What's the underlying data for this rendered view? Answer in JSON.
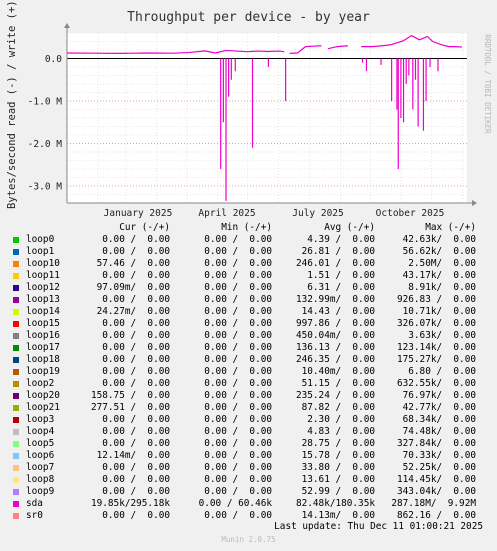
{
  "chart_data": {
    "type": "line",
    "title": "Throughput per device - by year",
    "ylabel": "Bytes/second read (-) / write (+)",
    "y_ticks": [
      "0.0",
      "-1.0 M",
      "-2.0 M",
      "-3.0 M"
    ],
    "y_tick_values": [
      0,
      -1000000,
      -2000000,
      -3000000
    ],
    "ylim": [
      -3400000,
      600000
    ],
    "x_ticks": [
      "January 2025",
      "April 2025",
      "July 2025",
      "October 2025"
    ],
    "grid": true,
    "columns": [
      "Cur (-/+)",
      "Min (-/+)",
      "Avg (-/+)",
      "Max (-/+)"
    ],
    "series": [
      {
        "name": "loop0",
        "color": "#00cc00",
        "cur": "0.00 /  0.00",
        "min": "0.00 /  0.00",
        "avg": "4.39 /  0.00",
        "max": "42.63k/  0.00"
      },
      {
        "name": "loop1",
        "color": "#0066b3",
        "cur": "0.00 /  0.00",
        "min": "0.00 /  0.00",
        "avg": "26.81 /  0.00",
        "max": "56.62k/  0.00"
      },
      {
        "name": "loop10",
        "color": "#ff8000",
        "cur": "57.46 /  0.00",
        "min": "0.00 /  0.00",
        "avg": "246.01 /  0.00",
        "max": "2.50M/  0.00"
      },
      {
        "name": "loop11",
        "color": "#ffcc00",
        "cur": "0.00 /  0.00",
        "min": "0.00 /  0.00",
        "avg": "1.51 /  0.00",
        "max": "43.17k/  0.00"
      },
      {
        "name": "loop12",
        "color": "#330099",
        "cur": "97.09m/  0.00",
        "min": "0.00 /  0.00",
        "avg": "6.31 /  0.00",
        "max": "8.91k/  0.00"
      },
      {
        "name": "loop13",
        "color": "#990099",
        "cur": "0.00 /  0.00",
        "min": "0.00 /  0.00",
        "avg": "132.99m/  0.00",
        "max": "926.83 /  0.00"
      },
      {
        "name": "loop14",
        "color": "#ccff00",
        "cur": "24.27m/  0.00",
        "min": "0.00 /  0.00",
        "avg": "14.43 /  0.00",
        "max": "10.71k/  0.00"
      },
      {
        "name": "loop15",
        "color": "#ff0000",
        "cur": "0.00 /  0.00",
        "min": "0.00 /  0.00",
        "avg": "997.86 /  0.00",
        "max": "326.07k/  0.00"
      },
      {
        "name": "loop16",
        "color": "#808080",
        "cur": "0.00 /  0.00",
        "min": "0.00 /  0.00",
        "avg": "450.04m/  0.00",
        "max": "3.63k/  0.00"
      },
      {
        "name": "loop17",
        "color": "#008f00",
        "cur": "0.00 /  0.00",
        "min": "0.00 /  0.00",
        "avg": "136.13 /  0.00",
        "max": "123.14k/  0.00"
      },
      {
        "name": "loop18",
        "color": "#00487d",
        "cur": "0.00 /  0.00",
        "min": "0.00 /  0.00",
        "avg": "246.35 /  0.00",
        "max": "175.27k/  0.00"
      },
      {
        "name": "loop19",
        "color": "#b35a00",
        "cur": "0.00 /  0.00",
        "min": "0.00 /  0.00",
        "avg": "10.40m/  0.00",
        "max": "6.80 /  0.00"
      },
      {
        "name": "loop2",
        "color": "#b38f00",
        "cur": "0.00 /  0.00",
        "min": "0.00 /  0.00",
        "avg": "51.15 /  0.00",
        "max": "632.55k/  0.00"
      },
      {
        "name": "loop20",
        "color": "#6b006b",
        "cur": "158.75 /  0.00",
        "min": "0.00 /  0.00",
        "avg": "235.24 /  0.00",
        "max": "76.97k/  0.00"
      },
      {
        "name": "loop21",
        "color": "#8fb300",
        "cur": "277.51 /  0.00",
        "min": "0.00 /  0.00",
        "avg": "87.82 /  0.00",
        "max": "42.77k/  0.00"
      },
      {
        "name": "loop3",
        "color": "#b30000",
        "cur": "0.00 /  0.00",
        "min": "0.00 /  0.00",
        "avg": "2.30 /  0.00",
        "max": "68.34k/  0.00"
      },
      {
        "name": "loop4",
        "color": "#bebebe",
        "cur": "0.00 /  0.00",
        "min": "0.00 /  0.00",
        "avg": "4.83 /  0.00",
        "max": "74.48k/  0.00"
      },
      {
        "name": "loop5",
        "color": "#80ff80",
        "cur": "0.00 /  0.00",
        "min": "0.00 /  0.00",
        "avg": "28.75 /  0.00",
        "max": "327.84k/  0.00"
      },
      {
        "name": "loop6",
        "color": "#80c9ff",
        "cur": "12.14m/  0.00",
        "min": "0.00 /  0.00",
        "avg": "15.78 /  0.00",
        "max": "70.33k/  0.00"
      },
      {
        "name": "loop7",
        "color": "#ffc080",
        "cur": "0.00 /  0.00",
        "min": "0.00 /  0.00",
        "avg": "33.80 /  0.00",
        "max": "52.25k/  0.00"
      },
      {
        "name": "loop8",
        "color": "#ffe680",
        "cur": "0.00 /  0.00",
        "min": "0.00 /  0.00",
        "avg": "13.61 /  0.00",
        "max": "114.45k/  0.00"
      },
      {
        "name": "loop9",
        "color": "#aa80ff",
        "cur": "0.00 /  0.00",
        "min": "0.00 /  0.00",
        "avg": "52.99 /  0.00",
        "max": "343.04k/  0.00"
      },
      {
        "name": "sda",
        "color": "#ee00cc",
        "cur": "19.85k/295.18k",
        "min": "0.00 / 60.46k",
        "avg": "82.48k/180.35k",
        "max": "287.18M/  9.92M"
      },
      {
        "name": "sr0",
        "color": "#ff8080",
        "cur": "0.00 /  0.00",
        "min": "0.00 /  0.00",
        "avg": "14.13m/  0.00",
        "max": "862.16 /  0.00"
      }
    ],
    "sda_write_segments": [
      [
        [
          0.0,
          130000
        ],
        [
          0.1,
          125000
        ],
        [
          0.2,
          120000
        ],
        [
          0.3,
          130000
        ],
        [
          0.4,
          125000
        ],
        [
          0.46,
          140000
        ],
        [
          0.52,
          180000
        ],
        [
          0.56,
          130000
        ],
        [
          0.6,
          190000
        ],
        [
          0.64,
          175000
        ],
        [
          0.68,
          160000
        ],
        [
          0.72,
          175000
        ],
        [
          0.76,
          165000
        ],
        [
          0.8,
          175000
        ],
        [
          0.82,
          160000
        ]
      ],
      [
        [
          0.84,
          120000
        ],
        [
          0.87,
          130000
        ],
        [
          0.9,
          280000
        ],
        [
          0.93,
          290000
        ],
        [
          0.96,
          300000
        ]
      ],
      [
        [
          0.985,
          230000
        ],
        [
          1.02,
          280000
        ],
        [
          1.06,
          300000
        ]
      ],
      [
        [
          1.11,
          280000
        ],
        [
          1.15,
          280000
        ],
        [
          1.19,
          300000
        ],
        [
          1.22,
          320000
        ],
        [
          1.27,
          420000
        ],
        [
          1.3,
          540000
        ],
        [
          1.33,
          440000
        ],
        [
          1.36,
          520000
        ],
        [
          1.38,
          400000
        ],
        [
          1.41,
          330000
        ],
        [
          1.44,
          280000
        ],
        [
          1.46,
          280000
        ],
        [
          1.49,
          270000
        ]
      ]
    ],
    "sda_read_dips": [
      [
        0.58,
        -2600000
      ],
      [
        0.59,
        -1500000
      ],
      [
        0.6,
        -3350000
      ],
      [
        0.61,
        -900000
      ],
      [
        0.62,
        -500000
      ],
      [
        0.635,
        -300000
      ],
      [
        0.7,
        -2100000
      ],
      [
        0.76,
        -200000
      ],
      [
        0.825,
        -1000000
      ],
      [
        1.115,
        -100000
      ],
      [
        1.13,
        -300000
      ],
      [
        1.185,
        -150000
      ],
      [
        1.225,
        -1000000
      ],
      [
        1.245,
        -1200000
      ],
      [
        1.25,
        -2600000
      ],
      [
        1.26,
        -1400000
      ],
      [
        1.27,
        -1500000
      ],
      [
        1.28,
        -600000
      ],
      [
        1.29,
        -400000
      ],
      [
        1.305,
        -1200000
      ],
      [
        1.315,
        -500000
      ],
      [
        1.325,
        -1600000
      ],
      [
        1.345,
        -1700000
      ],
      [
        1.355,
        -1000000
      ],
      [
        1.37,
        -200000
      ],
      [
        1.4,
        -300000
      ]
    ]
  },
  "footer": {
    "last_update": "Last update: Thu Dec 11 01:00:21 2025",
    "munin": "Munin 2.0.75",
    "watermark": "RRDTOOL / TOBI OETIKER"
  }
}
